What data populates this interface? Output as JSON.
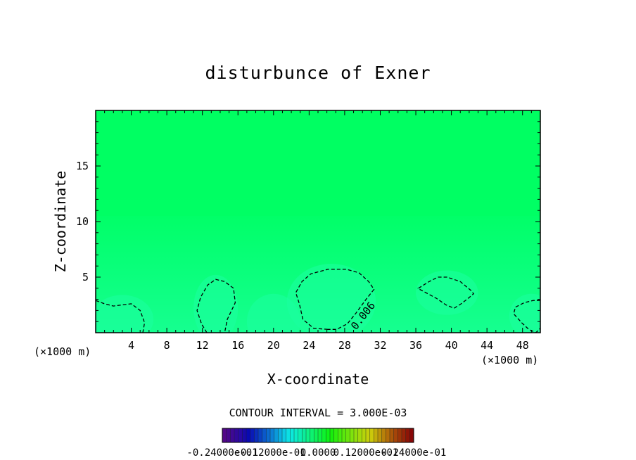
{
  "chart_data": {
    "type": "heatmap",
    "title": "disturbunce of Exner",
    "xlabel": "X-coordinate",
    "ylabel": "Z-coordinate",
    "x_unit_left": "(×1000 m)",
    "x_unit_right": "(×1000 m)",
    "xlim": [
      0,
      50
    ],
    "ylim": [
      0,
      20
    ],
    "x_ticks": [
      "4",
      "8",
      "12",
      "16",
      "20",
      "24",
      "28",
      "32",
      "36",
      "40",
      "44",
      "48"
    ],
    "y_ticks": [
      "5",
      "10",
      "15"
    ],
    "contour_interval_text": "CONTOUR INTERVAL = 3.000E-03",
    "contour_label": "0.006",
    "contour_level": 0.006,
    "contours": [
      {
        "points": [
          [
            0,
            2.9
          ],
          [
            1,
            2.6
          ],
          [
            2,
            2.4
          ],
          [
            3,
            2.5
          ],
          [
            4,
            2.6
          ],
          [
            5,
            2.0
          ],
          [
            5.5,
            0.9
          ],
          [
            5.3,
            0
          ]
        ]
      },
      {
        "points": [
          [
            12.5,
            0
          ],
          [
            11.9,
            0.8
          ],
          [
            11.4,
            2.0
          ],
          [
            11.8,
            3.2
          ],
          [
            12.6,
            4.3
          ],
          [
            13.5,
            4.8
          ],
          [
            14.5,
            4.6
          ],
          [
            15.5,
            4.0
          ],
          [
            15.7,
            2.7
          ],
          [
            14.8,
            1.2
          ],
          [
            14.5,
            0
          ]
        ]
      },
      {
        "points": [
          [
            26.1,
            0.3
          ],
          [
            24.5,
            0.4
          ],
          [
            23.3,
            1.2
          ],
          [
            22.9,
            2.6
          ],
          [
            22.5,
            3.6
          ],
          [
            23.2,
            4.6
          ],
          [
            24.2,
            5.3
          ],
          [
            26.1,
            5.7
          ],
          [
            28.2,
            5.7
          ],
          [
            29.6,
            5.4
          ],
          [
            30.7,
            4.6
          ],
          [
            31.3,
            3.9
          ],
          [
            30.4,
            3.0
          ],
          [
            29.3,
            1.8
          ],
          [
            28.3,
            0.8
          ],
          [
            27.1,
            0.3
          ],
          [
            26.1,
            0.3
          ]
        ]
      },
      {
        "points": [
          [
            36.3,
            4.0
          ],
          [
            37.5,
            4.6
          ],
          [
            38.5,
            5.0
          ],
          [
            39.5,
            5.0
          ],
          [
            41,
            4.6
          ],
          [
            42.2,
            3.8
          ],
          [
            42.5,
            3.5
          ],
          [
            41.9,
            3.1
          ],
          [
            41.1,
            2.6
          ],
          [
            40.3,
            2.2
          ],
          [
            39.4,
            2.5
          ],
          [
            38.3,
            3.1
          ],
          [
            36.2,
            4.0
          ]
        ]
      },
      {
        "points": [
          [
            50,
            2.9
          ],
          [
            49.2,
            2.9
          ],
          [
            48.2,
            2.7
          ],
          [
            47.2,
            2.3
          ],
          [
            47,
            1.7
          ],
          [
            47.9,
            0.9
          ],
          [
            48.7,
            0.3
          ],
          [
            49.5,
            0
          ],
          [
            50,
            0.4
          ]
        ]
      }
    ],
    "colorbar_labels": [
      "-0.24000e-01",
      "-0.12000e-01",
      "0.0000",
      "0.12000e-01",
      "0.24000e-01"
    ],
    "colorbar_range": [
      -0.024,
      0.024
    ],
    "colormap": "rainbow (purple-blue-cyan-green-yellow-red)",
    "field_color_upper": "#00ff66",
    "field_color_lower": "#11ff8c",
    "grid": false,
    "legend": "colorbar bottom-center"
  }
}
